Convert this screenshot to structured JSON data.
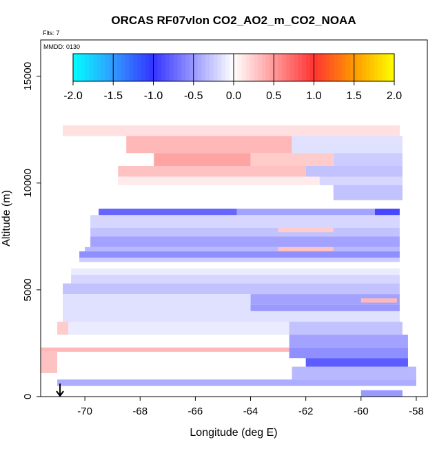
{
  "chart_data": {
    "type": "heatmap",
    "title": "ORCAS RF07vlon CO2_AO2_m_CO2_NOAA",
    "annotations": [
      "Flts: 7",
      "MMDD: 0130"
    ],
    "xlabel": "Longitude (deg E)",
    "ylabel": "Altitude (m)",
    "xlim": [
      -71.6,
      -57.6
    ],
    "ylim": [
      0,
      16700
    ],
    "x_ticks": [
      -70,
      -68,
      -66,
      -64,
      -62,
      -60,
      -58
    ],
    "y_ticks": [
      0,
      5000,
      10000,
      15000
    ],
    "grid": false,
    "colorbar": {
      "placement": "top-inside",
      "range": [
        -2.0,
        2.0
      ],
      "ticks": [
        "-2.0",
        "-1.5",
        "-1.0",
        "-0.5",
        "0.0",
        "0.5",
        "1.0",
        "1.5",
        "2.0"
      ],
      "colors": [
        "#00ffff",
        "#3399ff",
        "#3333ff",
        "#ffffff",
        "#ff3333",
        "#ff9900",
        "#ffff00"
      ]
    },
    "arrow_marker": {
      "longitude": -70.9,
      "altitude": 0,
      "direction": "down"
    },
    "bands": [
      {
        "lon_start": -70.8,
        "lon_end": -58.6,
        "alt_start": 12200,
        "alt_end": 12700,
        "value": 0.15
      },
      {
        "lon_start": -68.5,
        "lon_end": -62.5,
        "alt_start": 11400,
        "alt_end": 12200,
        "value": 0.35
      },
      {
        "lon_start": -62.5,
        "lon_end": -58.5,
        "alt_start": 11400,
        "alt_end": 12200,
        "value": -0.15
      },
      {
        "lon_start": -67.5,
        "lon_end": -64.0,
        "alt_start": 10800,
        "alt_end": 11400,
        "value": 0.45
      },
      {
        "lon_start": -64.0,
        "lon_end": -61.0,
        "alt_start": 10800,
        "alt_end": 11400,
        "value": 0.25
      },
      {
        "lon_start": -61.0,
        "lon_end": -58.5,
        "alt_start": 10800,
        "alt_end": 11400,
        "value": -0.25
      },
      {
        "lon_start": -68.8,
        "lon_end": -62.0,
        "alt_start": 10300,
        "alt_end": 10800,
        "value": 0.3
      },
      {
        "lon_start": -62.0,
        "lon_end": -58.5,
        "alt_start": 10300,
        "alt_end": 10800,
        "value": -0.3
      },
      {
        "lon_start": -68.8,
        "lon_end": -61.5,
        "alt_start": 9900,
        "alt_end": 10300,
        "value": 0.1
      },
      {
        "lon_start": -61.5,
        "lon_end": -58.5,
        "alt_start": 9900,
        "alt_end": 10300,
        "value": -0.2
      },
      {
        "lon_start": -61.0,
        "lon_end": -58.5,
        "alt_start": 9200,
        "alt_end": 9900,
        "value": -0.3
      },
      {
        "lon_start": -69.5,
        "lon_end": -64.5,
        "alt_start": 8500,
        "alt_end": 8800,
        "value": -0.75
      },
      {
        "lon_start": -64.5,
        "lon_end": -59.5,
        "alt_start": 8500,
        "alt_end": 8800,
        "value": -0.45
      },
      {
        "lon_start": -59.5,
        "lon_end": -58.6,
        "alt_start": 8500,
        "alt_end": 8800,
        "value": -0.9
      },
      {
        "lon_start": -69.8,
        "lon_end": -58.6,
        "alt_start": 7900,
        "alt_end": 8500,
        "value": -0.2
      },
      {
        "lon_start": -69.8,
        "lon_end": -58.6,
        "alt_start": 7500,
        "alt_end": 7900,
        "value": -0.3
      },
      {
        "lon_start": -63.0,
        "lon_end": -61.0,
        "alt_start": 7700,
        "alt_end": 7900,
        "value": 0.25
      },
      {
        "lon_start": -69.8,
        "lon_end": -58.6,
        "alt_start": 7000,
        "alt_end": 7500,
        "value": -0.45
      },
      {
        "lon_start": -70.0,
        "lon_end": -58.6,
        "alt_start": 6800,
        "alt_end": 7000,
        "value": -0.35
      },
      {
        "lon_start": -63.0,
        "lon_end": -61.0,
        "alt_start": 6800,
        "alt_end": 7000,
        "value": 0.3
      },
      {
        "lon_start": -70.2,
        "lon_end": -58.6,
        "alt_start": 6500,
        "alt_end": 6800,
        "value": -0.55
      },
      {
        "lon_start": -70.2,
        "lon_end": -58.6,
        "alt_start": 6300,
        "alt_end": 6500,
        "value": -0.25
      },
      {
        "lon_start": -70.5,
        "lon_end": -58.6,
        "alt_start": 5700,
        "alt_end": 6000,
        "value": -0.1
      },
      {
        "lon_start": -70.5,
        "lon_end": -58.6,
        "alt_start": 5300,
        "alt_end": 5700,
        "value": -0.2
      },
      {
        "lon_start": -70.8,
        "lon_end": -58.6,
        "alt_start": 4800,
        "alt_end": 5300,
        "value": -0.3
      },
      {
        "lon_start": -64.0,
        "lon_end": -58.6,
        "alt_start": 4300,
        "alt_end": 4800,
        "value": -0.45
      },
      {
        "lon_start": -60.0,
        "lon_end": -58.7,
        "alt_start": 4400,
        "alt_end": 4600,
        "value": 0.35
      },
      {
        "lon_start": -70.8,
        "lon_end": -64.0,
        "alt_start": 4000,
        "alt_end": 4800,
        "value": -0.15
      },
      {
        "lon_start": -64.0,
        "lon_end": -58.6,
        "alt_start": 4000,
        "alt_end": 4300,
        "value": -0.5
      },
      {
        "lon_start": -70.8,
        "lon_end": -58.6,
        "alt_start": 3500,
        "alt_end": 4000,
        "value": -0.15
      },
      {
        "lon_start": -71.0,
        "lon_end": -62.6,
        "alt_start": 2900,
        "alt_end": 3500,
        "value": -0.1
      },
      {
        "lon_start": -62.6,
        "lon_end": -58.5,
        "alt_start": 2900,
        "alt_end": 3500,
        "value": -0.3
      },
      {
        "lon_start": -71.0,
        "lon_end": -70.6,
        "alt_start": 2900,
        "alt_end": 3500,
        "value": 0.25
      },
      {
        "lon_start": -62.6,
        "lon_end": -58.3,
        "alt_start": 2300,
        "alt_end": 2900,
        "value": -0.45
      },
      {
        "lon_start": -71.6,
        "lon_end": -62.6,
        "alt_start": 2100,
        "alt_end": 2300,
        "value": 0.35
      },
      {
        "lon_start": -62.6,
        "lon_end": -58.3,
        "alt_start": 1800,
        "alt_end": 2300,
        "value": -0.55
      },
      {
        "lon_start": -71.6,
        "lon_end": -71.0,
        "alt_start": 1100,
        "alt_end": 2100,
        "value": 0.3
      },
      {
        "lon_start": -62.0,
        "lon_end": -58.3,
        "alt_start": 1400,
        "alt_end": 1800,
        "value": -0.8
      },
      {
        "lon_start": -62.5,
        "lon_end": -58.0,
        "alt_start": 800,
        "alt_end": 1400,
        "value": -0.35
      },
      {
        "lon_start": -71.0,
        "lon_end": -58.0,
        "alt_start": 500,
        "alt_end": 800,
        "value": -0.4
      },
      {
        "lon_start": -60.0,
        "lon_end": -58.5,
        "alt_start": 0,
        "alt_end": 300,
        "value": -0.5
      }
    ]
  }
}
